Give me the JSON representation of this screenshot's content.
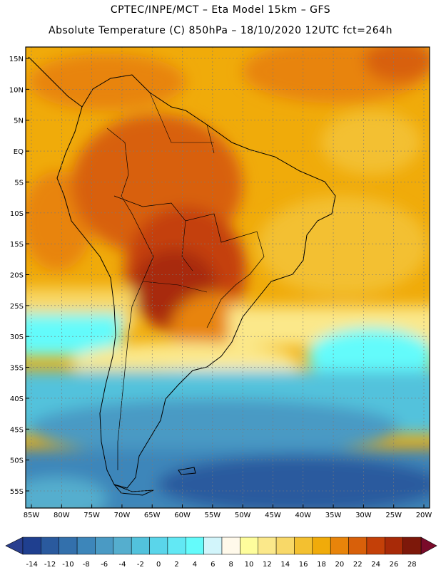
{
  "header": {
    "line1": "CPTEC/INPE/MCT –  Eta Model 15km – GFS",
    "line2": "Absolute Temperature (C) 850hPa – 18/10/2020 12UTC fct=264h"
  },
  "map": {
    "lon_range": [
      -85,
      -20
    ],
    "lat_range": [
      -58,
      17
    ],
    "lat_labels": [
      "15N",
      "10N",
      "5N",
      "EQ",
      "5S",
      "10S",
      "15S",
      "20S",
      "25S",
      "30S",
      "35S",
      "40S",
      "45S",
      "50S",
      "55S"
    ],
    "lon_labels": [
      "85W",
      "80W",
      "75W",
      "70W",
      "65W",
      "60W",
      "55W",
      "50W",
      "45W",
      "40W",
      "35W",
      "30W",
      "25W",
      "20W"
    ]
  },
  "colorbar": {
    "labels": [
      "-14",
      "-12",
      "-10",
      "-8",
      "-6",
      "-4",
      "-2",
      "0",
      "2",
      "4",
      "6",
      "8",
      "10",
      "12",
      "14",
      "16",
      "18",
      "20",
      "22",
      "24",
      "26",
      "28"
    ],
    "colors": [
      "#1f3f8f",
      "#2a5a9e",
      "#3370ac",
      "#3d86ba",
      "#4a9ac4",
      "#55aece",
      "#52c2dc",
      "#5ad5ea",
      "#62e8f4",
      "#64fbfb",
      "#d2f5fb",
      "#fff9ea",
      "#fefd9c",
      "#fbe88a",
      "#f8d868",
      "#f3c030",
      "#f0ab0a",
      "#e8840a",
      "#d8600a",
      "#c44008",
      "#a82a08",
      "#7d180a"
    ],
    "under_color": "#2a3f8f",
    "over_color": "#7a0a2a"
  }
}
